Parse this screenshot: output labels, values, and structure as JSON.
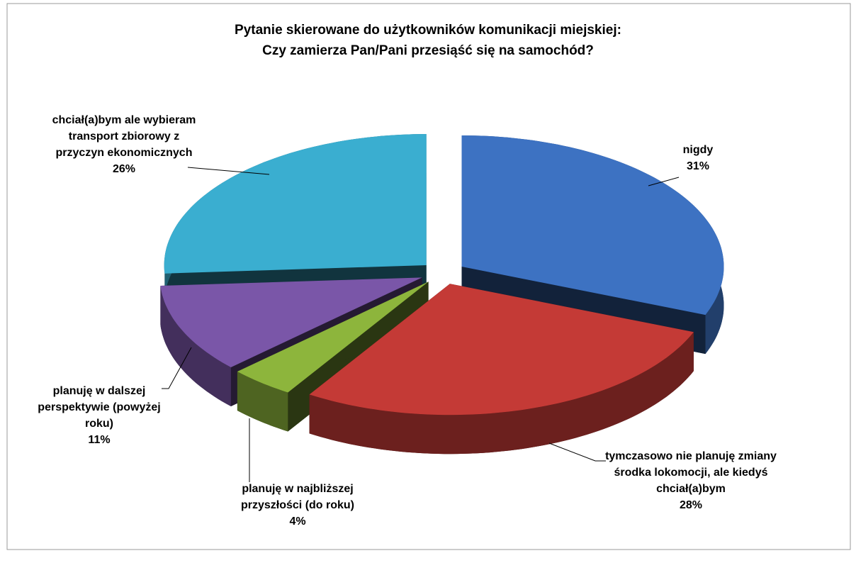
{
  "chart_data": {
    "type": "pie3d",
    "title": "Pytanie skierowane do użytkowników komunikacji miejskiej:\nCzy zamierza Pan/Pani przesiąść się na samochód?",
    "categories": [
      "nigdy",
      "tymczasowo nie planuję zmiany środka lokomocji, ale kiedyś chciał(a)bym",
      "planuję w najbliższej przyszłości (do roku)",
      "planuję w dalszej perspektywie (powyżej roku)",
      "chciał(a)bym ale wybieram transport zbiorowy z przyczyn ekonomicznych"
    ],
    "values": [
      31,
      28,
      4,
      11,
      26
    ],
    "value_labels": [
      "31%",
      "28%",
      "4%",
      "11%",
      "26%"
    ],
    "colors": [
      "#3d72c2",
      "#c43a36",
      "#8db53c",
      "#7a56a8",
      "#3aaed0"
    ]
  }
}
